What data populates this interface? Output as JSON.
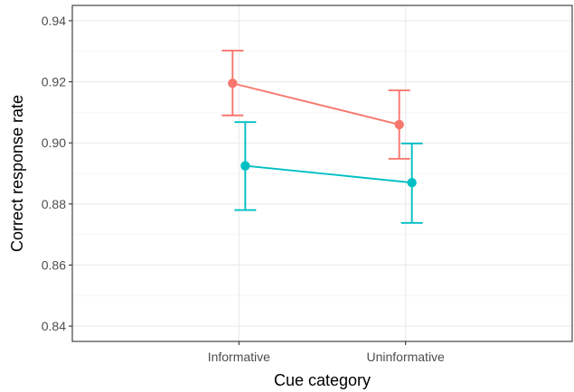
{
  "chart_data": {
    "type": "line",
    "title": "",
    "xlabel": "Cue category",
    "ylabel": "Correct response rate",
    "categories": [
      "Informative",
      "Uninformative"
    ],
    "ylim": [
      0.835,
      0.945
    ],
    "yticks": [
      0.84,
      0.86,
      0.88,
      0.9,
      0.92,
      0.94
    ],
    "ytick_labels": [
      "0.84",
      "0.86",
      "0.88",
      "0.90",
      "0.92",
      "0.94"
    ],
    "grid": true,
    "legend": "none",
    "series": [
      {
        "color": "#F8766D",
        "values": [
          0.9195,
          0.906
        ],
        "error_low": [
          0.909,
          0.8948
        ],
        "error_high": [
          0.9302,
          0.9172
        ]
      },
      {
        "color": "#00BFC4",
        "values": [
          0.8925,
          0.887
        ],
        "error_low": [
          0.878,
          0.8738
        ],
        "error_high": [
          0.9068,
          0.8998
        ]
      }
    ]
  }
}
